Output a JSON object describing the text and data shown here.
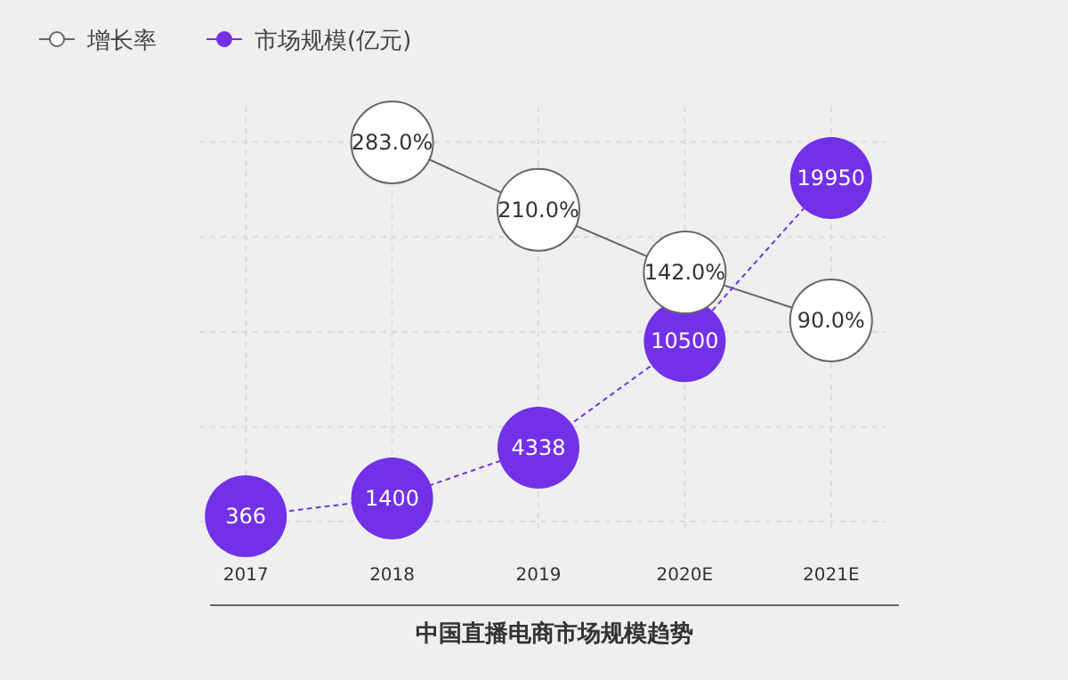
{
  "chart_data": {
    "type": "bubble",
    "title": "中国直播电商市场规模趋势",
    "categories": [
      "2017",
      "2018",
      "2019",
      "2020E",
      "2021E"
    ],
    "series": [
      {
        "name": "增长率",
        "sizes": [
          null,
          1,
          1,
          1,
          1
        ],
        "axis": "y2",
        "color": "#666666",
        "line_style": "solid",
        "values": [
          null,
          283,
          210,
          142,
          90
        ],
        "value_labels": [
          null,
          "283.0%",
          "210.0%",
          "142.0%",
          "90.0%"
        ]
      },
      {
        "name": "市场规模(亿元)",
        "sizes": [
          1,
          1,
          1,
          1,
          1
        ],
        "color": "#7231e6",
        "line_style": "dotted",
        "values": [
          366,
          1400,
          4338,
          10500,
          19950
        ],
        "value_labels": [
          "366",
          "1400",
          "4338",
          "10500",
          "19950"
        ]
      }
    ],
    "tick_labels": "x",
    "grid": true,
    "legend": "top left"
  }
}
